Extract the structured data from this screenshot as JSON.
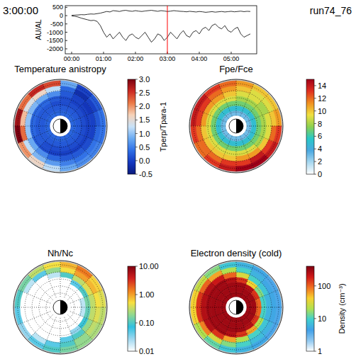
{
  "header": {
    "time": "3:00:00",
    "run": "run74_76"
  },
  "chart_data": [
    {
      "type": "line",
      "y_label": "AU/AL",
      "x": [
        0,
        0.1,
        0.2,
        0.3,
        0.4,
        0.5,
        0.6,
        0.7,
        0.8,
        0.9,
        1,
        1.1,
        1.2,
        1.3,
        1.4,
        1.5,
        1.6,
        1.7,
        1.8,
        1.9,
        2,
        2.1,
        2.2,
        2.3,
        2.4,
        2.5,
        2.6,
        2.7,
        2.8,
        2.9,
        3,
        3.1,
        3.2,
        3.3,
        3.4,
        3.5,
        3.6,
        3.7,
        3.8,
        3.9,
        4,
        4.1,
        4.2,
        4.3,
        4.4,
        4.5,
        4.6,
        4.7,
        4.8,
        4.9,
        5,
        5.1,
        5.2,
        5.3,
        5.4,
        5.5,
        5.6
      ],
      "xlim": [
        -0.2,
        5.8
      ],
      "xticks": [
        {
          "value": 0,
          "label": "00:00"
        },
        {
          "value": 1,
          "label": "01:00"
        },
        {
          "value": 2,
          "label": "02:00"
        },
        {
          "value": 3,
          "label": "03:00"
        },
        {
          "value": 4,
          "label": "04:00"
        },
        {
          "value": 5,
          "label": "05:00"
        }
      ],
      "ylim": [
        -2300,
        600
      ],
      "yticks": [
        500,
        0,
        -500,
        -1000,
        -1500,
        -2000
      ],
      "series": [
        {
          "color": "#000000",
          "values": [
            20,
            30,
            40,
            60,
            50,
            80,
            100,
            90,
            120,
            150,
            200,
            250,
            220,
            300,
            280,
            250,
            300,
            320,
            280,
            260,
            300,
            270,
            250,
            280,
            300,
            320,
            290,
            260,
            300,
            280,
            250,
            270,
            300,
            280,
            260,
            250,
            230,
            260,
            240,
            220,
            250,
            230,
            200,
            220,
            240,
            210,
            230,
            250,
            220,
            240,
            260,
            230,
            250,
            270,
            240,
            260,
            250
          ]
        },
        {
          "color": "#000000",
          "values": [
            -20,
            -40,
            -80,
            -150,
            -200,
            -250,
            -300,
            -280,
            -350,
            -600,
            -1000,
            -1300,
            -1100,
            -1400,
            -1200,
            -1000,
            -1300,
            -1500,
            -1200,
            -1100,
            -1300,
            -1400,
            -1200,
            -1000,
            -1300,
            -1600,
            -1400,
            -1100,
            -1200,
            -1500,
            -1300,
            -1000,
            -1200,
            -1400,
            -1100,
            -900,
            -1200,
            -1300,
            -1000,
            -900,
            -1100,
            -800,
            -700,
            -900,
            -600,
            -500,
            -700,
            -800,
            -600,
            -900,
            -1000,
            -800,
            -700,
            -1100,
            -1300,
            -1200,
            -1100
          ]
        }
      ],
      "annotations": [
        {
          "x": 3,
          "color": "#ff0000"
        }
      ]
    },
    {
      "type": "polar_heatmap",
      "title": "Temperature anistropy",
      "tick_labels": false,
      "r_edges": [
        1.5,
        2.2,
        2.9,
        3.6,
        4.3,
        5.0,
        5.7,
        6.4
      ],
      "mlt_edges": [
        0,
        1.5,
        3,
        4.5,
        6,
        7.5,
        9,
        10.5,
        12,
        13.5,
        15,
        16.5,
        18,
        19.5,
        21,
        22.5,
        24
      ],
      "rlim": [
        0,
        6.6
      ],
      "rticks": [
        2,
        3,
        4,
        5,
        6
      ],
      "colors": [
        "#0a1a7c",
        "#1438c0",
        "#2f6fe6",
        "#6aaaf2",
        "#c8e2f8",
        "#f6d2b8",
        "#ec7a46",
        "#cc2a22",
        "#7a0010"
      ],
      "cells": [
        [
          0.3,
          0.3,
          0.3,
          0.3,
          0.3,
          0.3,
          0.3,
          0.3,
          0.3,
          0.3,
          0.3,
          0.3,
          0.3,
          0.3,
          0.3,
          0.3
        ],
        [
          0.2,
          0.2,
          0.2,
          0.2,
          0.2,
          0.2,
          0.2,
          0.2,
          0.2,
          0.2,
          0.2,
          0.2,
          0.2,
          0.2,
          0.2,
          0.2
        ],
        [
          0.1,
          0.1,
          0.1,
          0.1,
          0.1,
          0.2,
          0.2,
          0.2,
          0.2,
          0.2,
          0.1,
          0.1,
          0.1,
          0.1,
          0.1,
          0.1
        ],
        [
          0.0,
          0.0,
          0.0,
          0.1,
          0.2,
          0.3,
          0.3,
          0.3,
          0.3,
          0.2,
          0.1,
          0.0,
          0.0,
          0.0,
          0.0,
          0.0
        ],
        [
          0.0,
          -0.1,
          0.0,
          0.2,
          0.6,
          0.8,
          0.9,
          1.0,
          1.0,
          0.8,
          0.6,
          0.3,
          0.2,
          0.2,
          0.1,
          0.0
        ],
        [
          0.2,
          0.0,
          -0.2,
          0.3,
          1.2,
          1.6,
          1.4,
          1.8,
          2.2,
          1.2,
          0.9,
          0.7,
          0.5,
          0.4,
          0.4,
          0.3
        ],
        [
          0.4,
          0.2,
          0.0,
          0.8,
          2.4,
          2.6,
          2.2,
          2.8,
          3.0,
          2.0,
          1.6,
          1.2,
          0.8,
          0.6,
          0.5,
          0.4
        ]
      ],
      "colorbar": {
        "range": [
          -0.5,
          3
        ],
        "ticks": [
          {
            "value": 3,
            "label": "3.0"
          },
          {
            "value": 2.5,
            "label": "2.5"
          },
          {
            "value": 2,
            "label": "2.0"
          },
          {
            "value": 1.5,
            "label": "1.5"
          },
          {
            "value": 1,
            "label": "1.0"
          },
          {
            "value": 0.5,
            "label": "0.5"
          },
          {
            "value": 0,
            "label": "0.0"
          },
          {
            "value": -0.5,
            "label": "-0.5"
          }
        ],
        "label": "Tperp/Tpara-1"
      }
    },
    {
      "type": "polar_heatmap",
      "title": "Fpe/Fce",
      "tick_labels": false,
      "r_edges": [
        1.5,
        2.2,
        2.9,
        3.6,
        4.3,
        5.0,
        5.7,
        6.4
      ],
      "mlt_edges": [
        0,
        1.5,
        3,
        4.5,
        6,
        7.5,
        9,
        10.5,
        12,
        13.5,
        15,
        16.5,
        18,
        19.5,
        21,
        22.5,
        24
      ],
      "rlim": [
        0,
        6.6
      ],
      "rticks": [
        2,
        3,
        4,
        5,
        6
      ],
      "colors": [
        "#ffffff",
        "#a8d8f0",
        "#4aa8e0",
        "#28c8c8",
        "#8cd050",
        "#f0e040",
        "#f09020",
        "#e03020",
        "#a00018"
      ],
      "cells": [
        [
          3,
          3,
          3,
          3,
          3,
          3,
          3,
          3,
          3,
          3,
          3,
          3,
          3,
          3,
          3,
          3
        ],
        [
          5,
          5,
          5,
          5,
          5,
          5,
          5,
          5,
          5,
          5,
          5,
          5,
          5,
          5,
          5,
          5
        ],
        [
          7,
          7,
          7,
          7,
          7,
          7,
          7,
          7,
          7,
          7,
          7,
          7,
          7,
          7,
          7,
          7
        ],
        [
          8,
          8,
          8,
          8,
          9,
          9,
          9,
          9,
          9,
          9,
          9,
          9,
          9,
          9,
          8,
          8
        ],
        [
          9,
          8,
          9,
          9,
          10,
          11,
          11,
          11,
          10,
          10,
          10,
          10,
          11,
          11,
          10,
          9
        ],
        [
          10,
          9,
          9,
          10,
          11,
          12,
          13,
          13,
          12,
          12,
          12,
          13,
          13,
          14,
          13,
          12
        ],
        [
          11,
          10,
          10,
          11,
          12,
          13,
          14,
          14,
          13,
          12,
          13,
          14,
          15,
          15,
          14,
          13
        ]
      ],
      "colorbar": {
        "range": [
          0,
          15
        ],
        "ticks": [
          14,
          12,
          10,
          8,
          6,
          4,
          2,
          0
        ]
      }
    },
    {
      "type": "polar_heatmap",
      "title": "Nh/Nc",
      "tick_labels": false,
      "log": true,
      "r_edges": [
        1.5,
        2.2,
        2.9,
        3.6,
        4.3,
        5.0,
        5.7,
        6.4
      ],
      "mlt_edges": [
        0,
        1.5,
        3,
        4.5,
        6,
        7.5,
        9,
        10.5,
        12,
        13.5,
        15,
        16.5,
        18,
        19.5,
        21,
        22.5,
        24
      ],
      "rlim": [
        0,
        6.6
      ],
      "rticks": [
        2,
        3,
        4,
        5,
        6
      ],
      "colors": [
        "#ffffff",
        "#a0d8f0",
        "#30c0e0",
        "#90d890",
        "#f8e040",
        "#f08020",
        "#d02020",
        "#800010"
      ],
      "cells": [
        [
          0.005,
          0.005,
          0.005,
          0.005,
          0.005,
          0.005,
          0.005,
          0.005,
          0.005,
          0.005,
          0.005,
          0.005,
          0.005,
          0.005,
          0.005,
          0.005
        ],
        [
          0.005,
          0.005,
          0.005,
          0.005,
          0.005,
          0.005,
          0.005,
          0.005,
          0.005,
          0.005,
          0.005,
          0.005,
          0.005,
          0.005,
          0.005,
          0.005
        ],
        [
          0.02,
          0.01,
          0.005,
          0.005,
          0.005,
          0.005,
          0.005,
          0.005,
          0.005,
          0.005,
          0.005,
          0.005,
          0.005,
          0.005,
          0.01,
          0.02
        ],
        [
          0.15,
          0.1,
          0.05,
          0.01,
          0.005,
          0.005,
          0.005,
          0.005,
          0.005,
          0.005,
          0.005,
          0.005,
          0.01,
          0.03,
          0.08,
          0.12
        ],
        [
          0.3,
          0.4,
          0.3,
          0.1,
          0.02,
          0.005,
          0.005,
          0.005,
          0.005,
          0.005,
          0.005,
          0.01,
          0.05,
          0.1,
          0.2,
          0.3
        ],
        [
          0.5,
          0.8,
          1.0,
          0.5,
          0.2,
          0.05,
          0.02,
          0.01,
          0.01,
          0.01,
          0.02,
          0.05,
          0.1,
          0.2,
          0.3,
          0.4
        ],
        [
          0.4,
          0.6,
          1.5,
          0.8,
          0.5,
          0.3,
          0.15,
          0.1,
          0.05,
          0.03,
          0.05,
          0.1,
          0.15,
          0.2,
          0.25,
          0.3
        ]
      ],
      "colorbar": {
        "range": [
          0.01,
          10
        ],
        "ticks": [
          {
            "value": 10,
            "label": "10.00"
          },
          {
            "value": 1,
            "label": "1.00"
          },
          {
            "value": 0.1,
            "label": "0.10"
          },
          {
            "value": 0.01,
            "label": "0.01"
          }
        ]
      }
    },
    {
      "type": "polar_heatmap",
      "title": "Electron density (cold)",
      "tick_labels": false,
      "log": true,
      "r_edges": [
        1.5,
        2.2,
        2.9,
        3.6,
        4.3,
        5.0,
        5.7,
        6.4
      ],
      "mlt_edges": [
        0,
        1.5,
        3,
        4.5,
        6,
        7.5,
        9,
        10.5,
        12,
        13.5,
        15,
        16.5,
        18,
        19.5,
        21,
        22.5,
        24
      ],
      "rlim": [
        0,
        6.6
      ],
      "rticks": [
        2,
        3,
        4,
        5,
        6
      ],
      "colors": [
        "#ffffff",
        "#90c8f0",
        "#40a0e8",
        "#40d0d0",
        "#b0e050",
        "#f8d030",
        "#f07020",
        "#d01818",
        "#800010"
      ],
      "cells": [
        [
          300,
          300,
          300,
          300,
          300,
          300,
          300,
          300,
          300,
          300,
          300,
          300,
          300,
          300,
          300,
          300
        ],
        [
          300,
          300,
          300,
          300,
          300,
          300,
          300,
          300,
          300,
          300,
          300,
          300,
          300,
          300,
          300,
          300
        ],
        [
          100,
          150,
          250,
          300,
          300,
          300,
          300,
          300,
          300,
          300,
          300,
          300,
          300,
          250,
          150,
          100
        ],
        [
          10,
          15,
          40,
          150,
          250,
          300,
          300,
          300,
          300,
          300,
          300,
          250,
          150,
          60,
          20,
          10
        ],
        [
          6,
          8,
          10,
          30,
          100,
          200,
          250,
          250,
          250,
          250,
          150,
          60,
          20,
          10,
          8,
          6
        ],
        [
          5,
          5,
          6,
          10,
          20,
          60,
          100,
          150,
          150,
          80,
          30,
          15,
          10,
          7,
          6,
          5
        ],
        [
          4,
          4,
          5,
          6,
          8,
          15,
          25,
          40,
          40,
          20,
          12,
          8,
          6,
          5,
          4,
          4
        ]
      ],
      "colorbar": {
        "range": [
          1,
          400
        ],
        "ticks": [
          100,
          10,
          1
        ],
        "label": "Density (cm⁻³)"
      }
    }
  ]
}
